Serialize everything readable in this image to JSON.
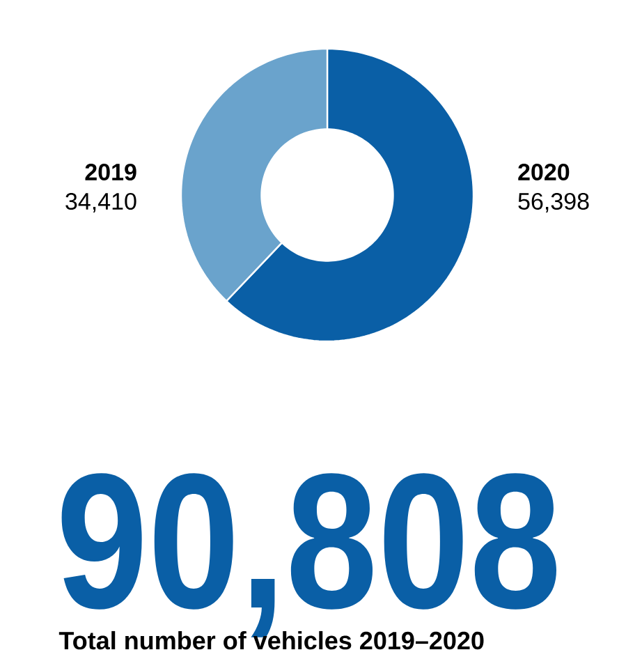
{
  "chart_data": {
    "type": "donut",
    "title": "90,808",
    "subtitle": "Total number of vehicles 2019–2020",
    "categories": [
      "2020",
      "2019"
    ],
    "values": [
      56398,
      34410
    ],
    "colors": [
      "#0a5fa6",
      "#6aa3cc"
    ],
    "value_labels": [
      "56,398",
      "34,410"
    ]
  }
}
